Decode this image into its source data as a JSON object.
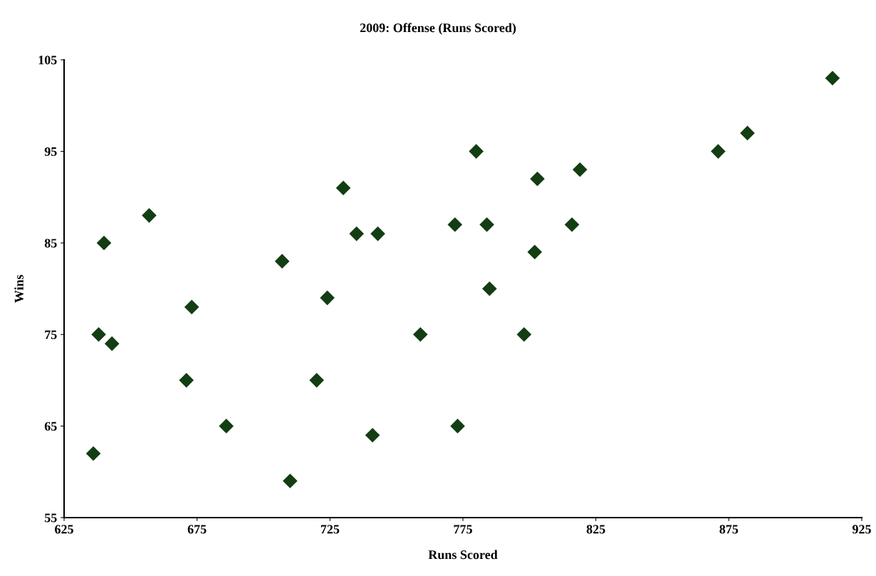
{
  "chart_data": {
    "type": "scatter",
    "title": "2009: Offense (Runs Scored)",
    "xlabel": "Runs Scored",
    "ylabel": "Wins",
    "x": [
      636,
      638,
      640,
      643,
      657,
      671,
      673,
      686,
      707,
      710,
      720,
      724,
      730,
      735,
      741,
      743,
      759,
      772,
      773,
      780,
      784,
      785,
      798,
      802,
      803,
      816,
      819,
      871,
      882,
      914
    ],
    "series": [
      {
        "color": "#133d13",
        "values": [
          62,
          75,
          85,
          74,
          88,
          70,
          78,
          65,
          83,
          59,
          70,
          79,
          91,
          86,
          64,
          86,
          75,
          87,
          65,
          95,
          87,
          80,
          75,
          84,
          92,
          87,
          93,
          95,
          97,
          103
        ]
      }
    ],
    "marker": "diamond",
    "grid": false,
    "legend": false,
    "xlim": [
      625,
      925
    ],
    "xticks": [
      625,
      675,
      725,
      775,
      825,
      875,
      925
    ],
    "ylim": [
      55,
      105
    ],
    "yticks": [
      55,
      65,
      75,
      85,
      95,
      105
    ]
  }
}
